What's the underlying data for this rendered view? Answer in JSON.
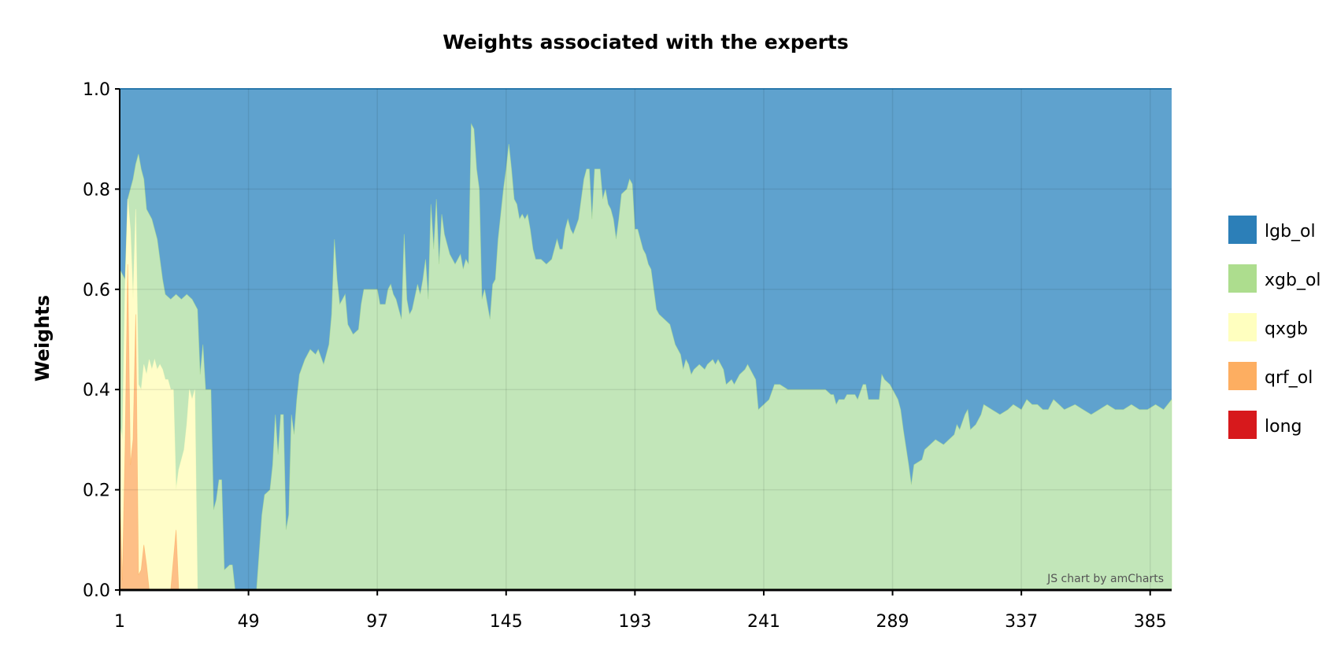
{
  "chart_data": {
    "type": "area",
    "stacked": true,
    "normalized": true,
    "title": "Weights associated with the experts",
    "xlabel": "",
    "ylabel": "Weights",
    "xlim": [
      1,
      393
    ],
    "ylim": [
      0,
      1
    ],
    "x_ticks": [
      "1",
      "49",
      "97",
      "145",
      "193",
      "241",
      "289",
      "337",
      "385"
    ],
    "y_ticks": [
      "0.0",
      "0.2",
      "0.4",
      "0.6",
      "0.8",
      "1.0"
    ],
    "grid": true,
    "legend_position": "right",
    "credit": "JS chart by amCharts",
    "stack_order_bottom_to_top": [
      "long",
      "qrf_ol",
      "qxgb",
      "xgb_ol",
      "lgb_ol"
    ],
    "series": [
      {
        "name": "lgb_ol",
        "color": "#2c7fb8",
        "fill": "#5fa2ce",
        "values": "remainder to 1.0"
      },
      {
        "name": "xgb_ol",
        "color": "#addd8e",
        "fill": "#c2e6b9",
        "cumulative_top_points": [
          [
            1,
            0.64
          ],
          [
            2,
            0.63
          ],
          [
            3,
            0.62
          ],
          [
            4,
            0.78
          ],
          [
            5,
            0.8
          ],
          [
            6,
            0.82
          ],
          [
            7,
            0.85
          ],
          [
            8,
            0.87
          ],
          [
            9,
            0.84
          ],
          [
            10,
            0.82
          ],
          [
            11,
            0.76
          ],
          [
            12,
            0.75
          ],
          [
            13,
            0.74
          ],
          [
            15,
            0.7
          ],
          [
            17,
            0.62
          ],
          [
            18,
            0.59
          ],
          [
            20,
            0.58
          ],
          [
            22,
            0.59
          ],
          [
            24,
            0.58
          ],
          [
            26,
            0.59
          ],
          [
            28,
            0.58
          ],
          [
            30,
            0.56
          ],
          [
            31,
            0.43
          ],
          [
            32,
            0.49
          ],
          [
            33,
            0.4
          ],
          [
            35,
            0.4
          ],
          [
            36,
            0.16
          ],
          [
            37,
            0.18
          ],
          [
            38,
            0.22
          ],
          [
            39,
            0.22
          ],
          [
            40,
            0.04
          ],
          [
            42,
            0.05
          ],
          [
            43,
            0.05
          ],
          [
            44,
            0.0
          ],
          [
            50,
            0.0
          ],
          [
            52,
            0.0
          ],
          [
            54,
            0.15
          ],
          [
            55,
            0.19
          ],
          [
            57,
            0.2
          ],
          [
            58,
            0.25
          ],
          [
            59,
            0.35
          ],
          [
            60,
            0.27
          ],
          [
            61,
            0.35
          ],
          [
            62,
            0.35
          ],
          [
            63,
            0.12
          ],
          [
            64,
            0.15
          ],
          [
            65,
            0.35
          ],
          [
            66,
            0.31
          ],
          [
            67,
            0.38
          ],
          [
            68,
            0.43
          ],
          [
            70,
            0.46
          ],
          [
            72,
            0.48
          ],
          [
            74,
            0.47
          ],
          [
            75,
            0.48
          ],
          [
            77,
            0.45
          ],
          [
            79,
            0.49
          ],
          [
            80,
            0.55
          ],
          [
            81,
            0.7
          ],
          [
            82,
            0.62
          ],
          [
            83,
            0.57
          ],
          [
            85,
            0.59
          ],
          [
            86,
            0.53
          ],
          [
            88,
            0.51
          ],
          [
            90,
            0.52
          ],
          [
            91,
            0.57
          ],
          [
            92,
            0.6
          ],
          [
            95,
            0.6
          ],
          [
            97,
            0.6
          ],
          [
            98,
            0.57
          ],
          [
            100,
            0.57
          ],
          [
            101,
            0.6
          ],
          [
            102,
            0.61
          ],
          [
            103,
            0.59
          ],
          [
            104,
            0.58
          ],
          [
            105,
            0.56
          ],
          [
            106,
            0.54
          ],
          [
            107,
            0.71
          ],
          [
            108,
            0.58
          ],
          [
            109,
            0.55
          ],
          [
            110,
            0.56
          ],
          [
            112,
            0.61
          ],
          [
            113,
            0.59
          ],
          [
            114,
            0.62
          ],
          [
            115,
            0.66
          ],
          [
            116,
            0.58
          ],
          [
            117,
            0.77
          ],
          [
            118,
            0.68
          ],
          [
            119,
            0.78
          ],
          [
            120,
            0.65
          ],
          [
            121,
            0.75
          ],
          [
            122,
            0.71
          ],
          [
            124,
            0.67
          ],
          [
            126,
            0.65
          ],
          [
            127,
            0.66
          ],
          [
            128,
            0.67
          ],
          [
            129,
            0.64
          ],
          [
            130,
            0.66
          ],
          [
            131,
            0.65
          ],
          [
            132,
            0.93
          ],
          [
            133,
            0.92
          ],
          [
            134,
            0.84
          ],
          [
            135,
            0.8
          ],
          [
            136,
            0.58
          ],
          [
            137,
            0.6
          ],
          [
            138,
            0.57
          ],
          [
            139,
            0.54
          ],
          [
            140,
            0.61
          ],
          [
            141,
            0.62
          ],
          [
            142,
            0.7
          ],
          [
            143,
            0.75
          ],
          [
            144,
            0.8
          ],
          [
            145,
            0.84
          ],
          [
            146,
            0.89
          ],
          [
            147,
            0.84
          ],
          [
            148,
            0.78
          ],
          [
            149,
            0.77
          ],
          [
            150,
            0.74
          ],
          [
            151,
            0.75
          ],
          [
            152,
            0.74
          ],
          [
            153,
            0.75
          ],
          [
            154,
            0.72
          ],
          [
            155,
            0.68
          ],
          [
            156,
            0.66
          ],
          [
            158,
            0.66
          ],
          [
            160,
            0.65
          ],
          [
            162,
            0.66
          ],
          [
            164,
            0.7
          ],
          [
            165,
            0.68
          ],
          [
            166,
            0.68
          ],
          [
            167,
            0.72
          ],
          [
            168,
            0.74
          ],
          [
            169,
            0.72
          ],
          [
            170,
            0.71
          ],
          [
            172,
            0.74
          ],
          [
            174,
            0.82
          ],
          [
            175,
            0.84
          ],
          [
            176,
            0.84
          ],
          [
            177,
            0.74
          ],
          [
            178,
            0.84
          ],
          [
            180,
            0.84
          ],
          [
            181,
            0.78
          ],
          [
            182,
            0.8
          ],
          [
            183,
            0.77
          ],
          [
            184,
            0.76
          ],
          [
            185,
            0.74
          ],
          [
            186,
            0.7
          ],
          [
            187,
            0.74
          ],
          [
            188,
            0.79
          ],
          [
            190,
            0.8
          ],
          [
            191,
            0.82
          ],
          [
            192,
            0.81
          ],
          [
            193,
            0.72
          ],
          [
            194,
            0.72
          ],
          [
            195,
            0.7
          ],
          [
            196,
            0.68
          ],
          [
            197,
            0.67
          ],
          [
            198,
            0.65
          ],
          [
            199,
            0.64
          ],
          [
            200,
            0.6
          ],
          [
            201,
            0.56
          ],
          [
            202,
            0.55
          ],
          [
            204,
            0.54
          ],
          [
            206,
            0.53
          ],
          [
            207,
            0.51
          ],
          [
            208,
            0.49
          ],
          [
            209,
            0.48
          ],
          [
            210,
            0.47
          ],
          [
            211,
            0.44
          ],
          [
            212,
            0.46
          ],
          [
            213,
            0.45
          ],
          [
            214,
            0.43
          ],
          [
            215,
            0.44
          ],
          [
            217,
            0.45
          ],
          [
            219,
            0.44
          ],
          [
            220,
            0.45
          ],
          [
            222,
            0.46
          ],
          [
            223,
            0.45
          ],
          [
            224,
            0.46
          ],
          [
            226,
            0.44
          ],
          [
            227,
            0.41
          ],
          [
            229,
            0.42
          ],
          [
            230,
            0.41
          ],
          [
            232,
            0.43
          ],
          [
            234,
            0.44
          ],
          [
            235,
            0.45
          ],
          [
            236,
            0.44
          ],
          [
            237,
            0.43
          ],
          [
            238,
            0.42
          ],
          [
            239,
            0.36
          ],
          [
            241,
            0.37
          ],
          [
            243,
            0.38
          ],
          [
            245,
            0.41
          ],
          [
            247,
            0.41
          ],
          [
            250,
            0.4
          ],
          [
            254,
            0.4
          ],
          [
            258,
            0.4
          ],
          [
            261,
            0.4
          ],
          [
            264,
            0.4
          ],
          [
            266,
            0.39
          ],
          [
            267,
            0.39
          ],
          [
            268,
            0.37
          ],
          [
            269,
            0.38
          ],
          [
            271,
            0.38
          ],
          [
            272,
            0.39
          ],
          [
            275,
            0.39
          ],
          [
            276,
            0.38
          ],
          [
            278,
            0.41
          ],
          [
            279,
            0.41
          ],
          [
            280,
            0.38
          ],
          [
            282,
            0.38
          ],
          [
            284,
            0.38
          ],
          [
            285,
            0.43
          ],
          [
            286,
            0.42
          ],
          [
            288,
            0.41
          ],
          [
            289,
            0.4
          ],
          [
            291,
            0.38
          ],
          [
            292,
            0.36
          ],
          [
            293,
            0.32
          ],
          [
            295,
            0.25
          ],
          [
            296,
            0.21
          ],
          [
            297,
            0.25
          ],
          [
            300,
            0.26
          ],
          [
            301,
            0.28
          ],
          [
            303,
            0.29
          ],
          [
            305,
            0.3
          ],
          [
            308,
            0.29
          ],
          [
            310,
            0.3
          ],
          [
            312,
            0.31
          ],
          [
            313,
            0.33
          ],
          [
            314,
            0.32
          ],
          [
            316,
            0.35
          ],
          [
            317,
            0.36
          ],
          [
            318,
            0.32
          ],
          [
            320,
            0.33
          ],
          [
            322,
            0.35
          ],
          [
            323,
            0.37
          ],
          [
            326,
            0.36
          ],
          [
            329,
            0.35
          ],
          [
            332,
            0.36
          ],
          [
            334,
            0.37
          ],
          [
            337,
            0.36
          ],
          [
            339,
            0.38
          ],
          [
            341,
            0.37
          ],
          [
            343,
            0.37
          ],
          [
            345,
            0.36
          ],
          [
            347,
            0.36
          ],
          [
            349,
            0.38
          ],
          [
            351,
            0.37
          ],
          [
            353,
            0.36
          ],
          [
            357,
            0.37
          ],
          [
            360,
            0.36
          ],
          [
            363,
            0.35
          ],
          [
            366,
            0.36
          ],
          [
            369,
            0.37
          ],
          [
            372,
            0.36
          ],
          [
            375,
            0.36
          ],
          [
            378,
            0.37
          ],
          [
            381,
            0.36
          ],
          [
            384,
            0.36
          ],
          [
            387,
            0.37
          ],
          [
            390,
            0.36
          ],
          [
            393,
            0.38
          ]
        ]
      },
      {
        "name": "qxgb",
        "color": "#ffffbf",
        "fill": "#fffdc8",
        "cumulative_top_points": [
          [
            1,
            0.33
          ],
          [
            2,
            0.3
          ],
          [
            3,
            0.6
          ],
          [
            4,
            0.78
          ],
          [
            5,
            0.72
          ],
          [
            6,
            0.58
          ],
          [
            7,
            0.76
          ],
          [
            8,
            0.41
          ],
          [
            9,
            0.4
          ],
          [
            10,
            0.45
          ],
          [
            11,
            0.43
          ],
          [
            12,
            0.46
          ],
          [
            13,
            0.44
          ],
          [
            14,
            0.46
          ],
          [
            15,
            0.44
          ],
          [
            16,
            0.45
          ],
          [
            17,
            0.44
          ],
          [
            18,
            0.42
          ],
          [
            19,
            0.42
          ],
          [
            20,
            0.4
          ],
          [
            21,
            0.4
          ],
          [
            22,
            0.2
          ],
          [
            23,
            0.24
          ],
          [
            24,
            0.26
          ],
          [
            25,
            0.28
          ],
          [
            26,
            0.33
          ],
          [
            27,
            0.4
          ],
          [
            28,
            0.38
          ],
          [
            29,
            0.4
          ],
          [
            30,
            0.0
          ]
        ]
      },
      {
        "name": "qrf_ol",
        "color": "#fdae61",
        "fill": "#fdbf87",
        "cumulative_top_points": [
          [
            1,
            0.2
          ],
          [
            2,
            0.02
          ],
          [
            3,
            0.28
          ],
          [
            4,
            0.65
          ],
          [
            5,
            0.25
          ],
          [
            6,
            0.3
          ],
          [
            7,
            0.55
          ],
          [
            8,
            0.03
          ],
          [
            9,
            0.04
          ],
          [
            10,
            0.09
          ],
          [
            11,
            0.05
          ],
          [
            12,
            0.0
          ],
          [
            13,
            0.0
          ],
          [
            20,
            0.0
          ],
          [
            22,
            0.12
          ],
          [
            23,
            0.0
          ]
        ]
      },
      {
        "name": "long",
        "color": "#d7191c",
        "fill": "#d7191c",
        "values": "near 0"
      }
    ]
  }
}
